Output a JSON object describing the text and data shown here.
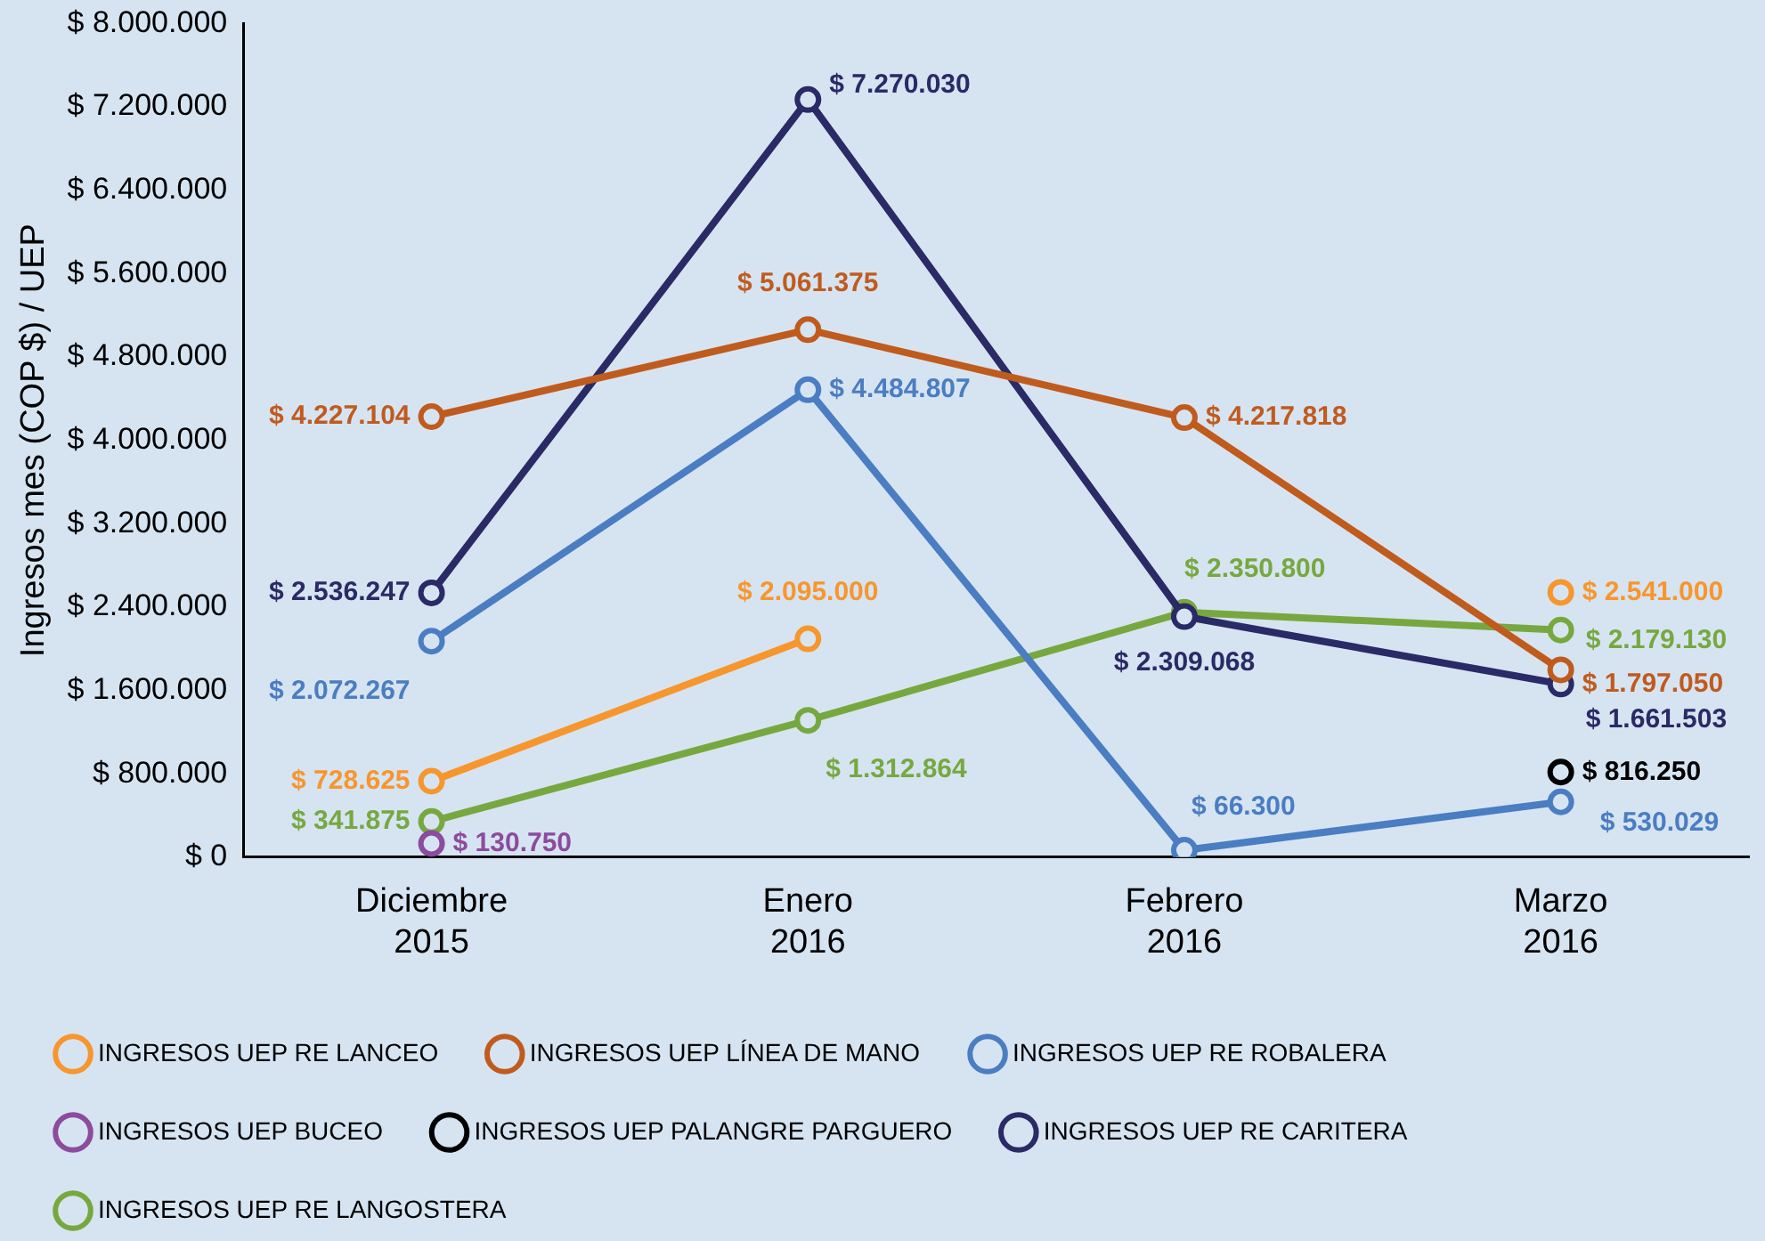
{
  "chart_data": {
    "type": "line",
    "ylabel": "Ingresos mes (COP $) / UEP",
    "categories": [
      "Diciembre 2015",
      "Enero 2016",
      "Febrero 2016",
      "Marzo 2016"
    ],
    "ylim": [
      0,
      8000000
    ],
    "yticks": [
      {
        "value": 0,
        "label": "$ 0"
      },
      {
        "value": 800000,
        "label": "$ 800.000"
      },
      {
        "value": 1600000,
        "label": "$ 1.600.000"
      },
      {
        "value": 2400000,
        "label": "$ 2.400.000"
      },
      {
        "value": 3200000,
        "label": "$ 3.200.000"
      },
      {
        "value": 4000000,
        "label": "$ 4.000.000"
      },
      {
        "value": 4800000,
        "label": "$ 4.800.000"
      },
      {
        "value": 5600000,
        "label": "$ 5.600.000"
      },
      {
        "value": 6400000,
        "label": "$ 6.400.000"
      },
      {
        "value": 7200000,
        "label": "$ 7.200.000"
      },
      {
        "value": 8000000,
        "label": "$ 8.000.000"
      }
    ],
    "grid": false,
    "legend": "bottom",
    "marker": "circle",
    "line_style": "solid",
    "series": [
      {
        "name": "INGRESOS UEP RE LANCEO",
        "color": "#f7962d",
        "values": [
          728625,
          2095000,
          null,
          2541000
        ],
        "value_labels": [
          "$ 728.625",
          "$ 2.095.000",
          null,
          "$ 2.541.000"
        ]
      },
      {
        "name": "INGRESOS UEP LÍNEA DE MANO",
        "color": "#c05b1e",
        "values": [
          4227104,
          5061375,
          4217818,
          1797050
        ],
        "value_labels": [
          "$ 4.227.104",
          "$ 5.061.375",
          "$ 4.217.818",
          "$ 1.797.050"
        ]
      },
      {
        "name": "INGRESOS UEP RE ROBALERA",
        "color": "#4a7dc2",
        "values": [
          2072267,
          4484807,
          66300,
          530029
        ],
        "value_labels": [
          "$ 2.072.267",
          "$ 4.484.807",
          "$ 66.300",
          "$ 530.029"
        ]
      },
      {
        "name": "INGRESOS UEP BUCEO",
        "color": "#8c4b9e",
        "values": [
          130750,
          null,
          null,
          null
        ],
        "value_labels": [
          "$ 130.750",
          null,
          null,
          null
        ]
      },
      {
        "name": "INGRESOS UEP PALANGRE PARGUERO",
        "color": "#000000",
        "values": [
          null,
          null,
          null,
          816250
        ],
        "value_labels": [
          null,
          null,
          null,
          "$ 816.250"
        ]
      },
      {
        "name": "INGRESOS UEP RE CARITERA",
        "color": "#2a2a66",
        "values": [
          2536247,
          7270030,
          2309068,
          1661503
        ],
        "value_labels": [
          "$ 2.536.247",
          "$ 7.270.030",
          "$ 2.309.068",
          "$ 1.661.503"
        ]
      },
      {
        "name": "INGRESOS UEP RE LANGOSTERA",
        "color": "#77a83f",
        "values": [
          341875,
          1312864,
          2350800,
          2179130
        ],
        "value_labels": [
          "$ 341.875",
          "$ 1.312.864",
          "$ 2.350.800",
          "$ 2.179.130"
        ]
      }
    ]
  }
}
